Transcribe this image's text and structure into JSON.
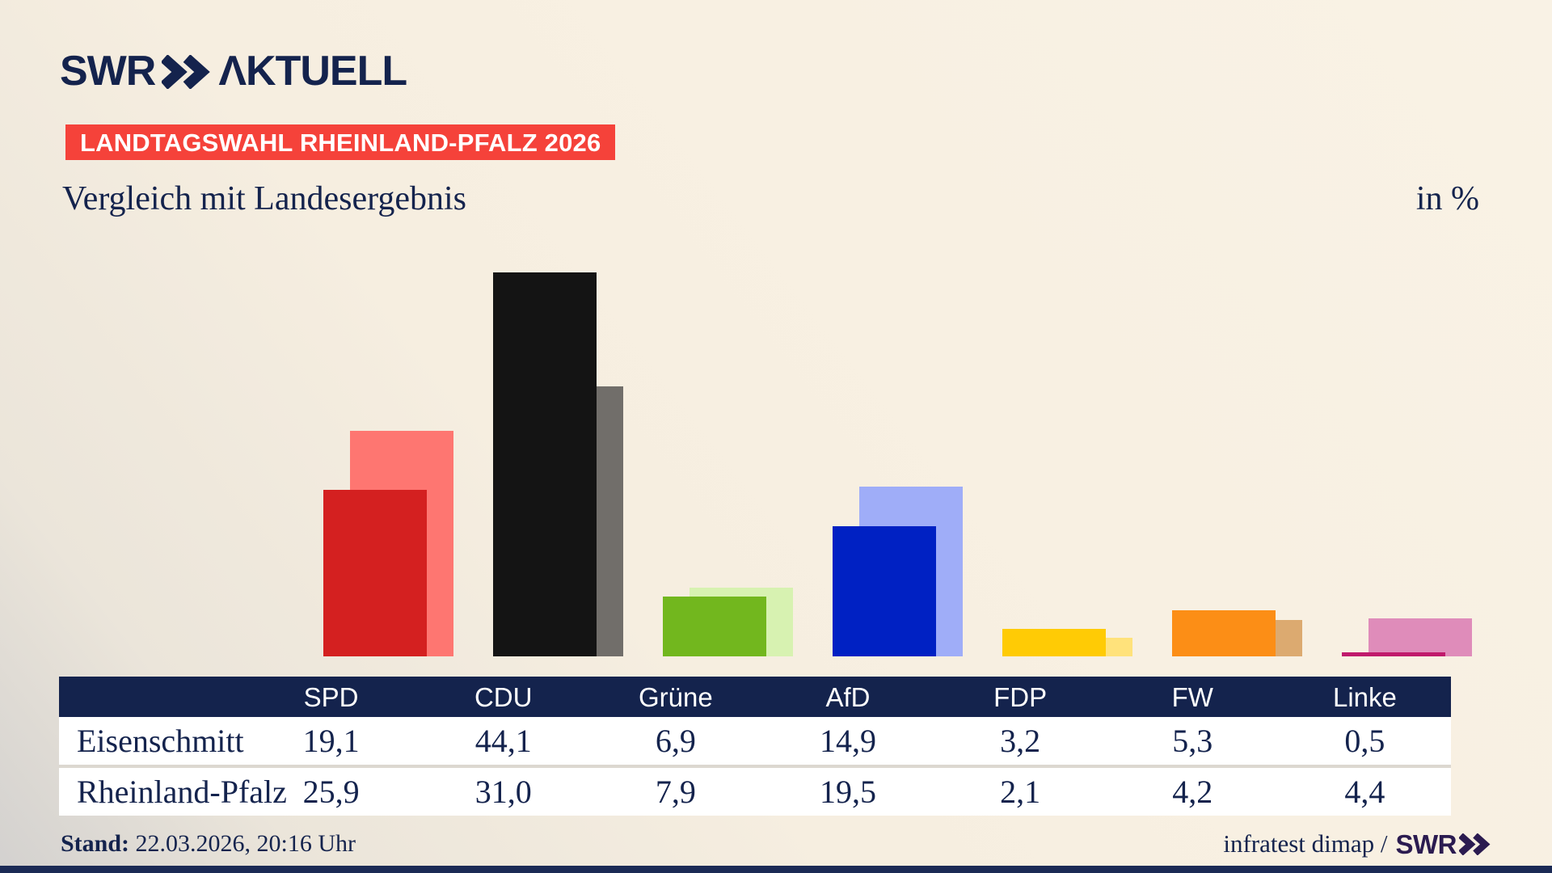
{
  "brand": {
    "logo_left": "SWR",
    "logo_right": "AKTUELL"
  },
  "badge": {
    "text": "LANDTAGSWAHL RHEINLAND-PFALZ 2026",
    "bg": "#f5423a",
    "fg": "#ffffff"
  },
  "title": {
    "text": "Vergleich mit Landesergebnis",
    "unit": "in %"
  },
  "footer": {
    "stand_label": "Stand:",
    "stand_value": "22.03.2026, 20:16 Uhr",
    "source_text": "infratest dimap /",
    "source_brand": "SWR"
  },
  "colors": {
    "navy": "#14234d",
    "table_header_bg": "#14234d",
    "row_bg": "#ffffff",
    "background_cream": "#f8f0e2",
    "bottom_strip": "#1b2a55"
  },
  "chart_data": {
    "type": "bar",
    "title": "Vergleich mit Landesergebnis",
    "unit": "in %",
    "categories": [
      "SPD",
      "CDU",
      "Grüne",
      "AfD",
      "FDP",
      "FW",
      "Linke"
    ],
    "series": [
      {
        "name": "Eisenschmitt",
        "values": [
          19.1,
          44.1,
          6.9,
          14.9,
          3.2,
          5.3,
          0.5
        ],
        "colors": [
          "#d42020",
          "#141414",
          "#72b71e",
          "#0021c3",
          "#ffcb05",
          "#fc8e16",
          "#c01a6c"
        ]
      },
      {
        "name": "Rheinland-Pfalz",
        "values": [
          25.9,
          31.0,
          7.9,
          19.5,
          2.1,
          4.2,
          4.4
        ],
        "colors": [
          "#fe7671",
          "#716e6a",
          "#d7f2b1",
          "#9fadf8",
          "#ffe27b",
          "#dcaa70",
          "#df8cba"
        ]
      }
    ],
    "value_format": "comma-decimal",
    "ylim": [
      0,
      46
    ],
    "grid": false,
    "legend": "table-below"
  }
}
